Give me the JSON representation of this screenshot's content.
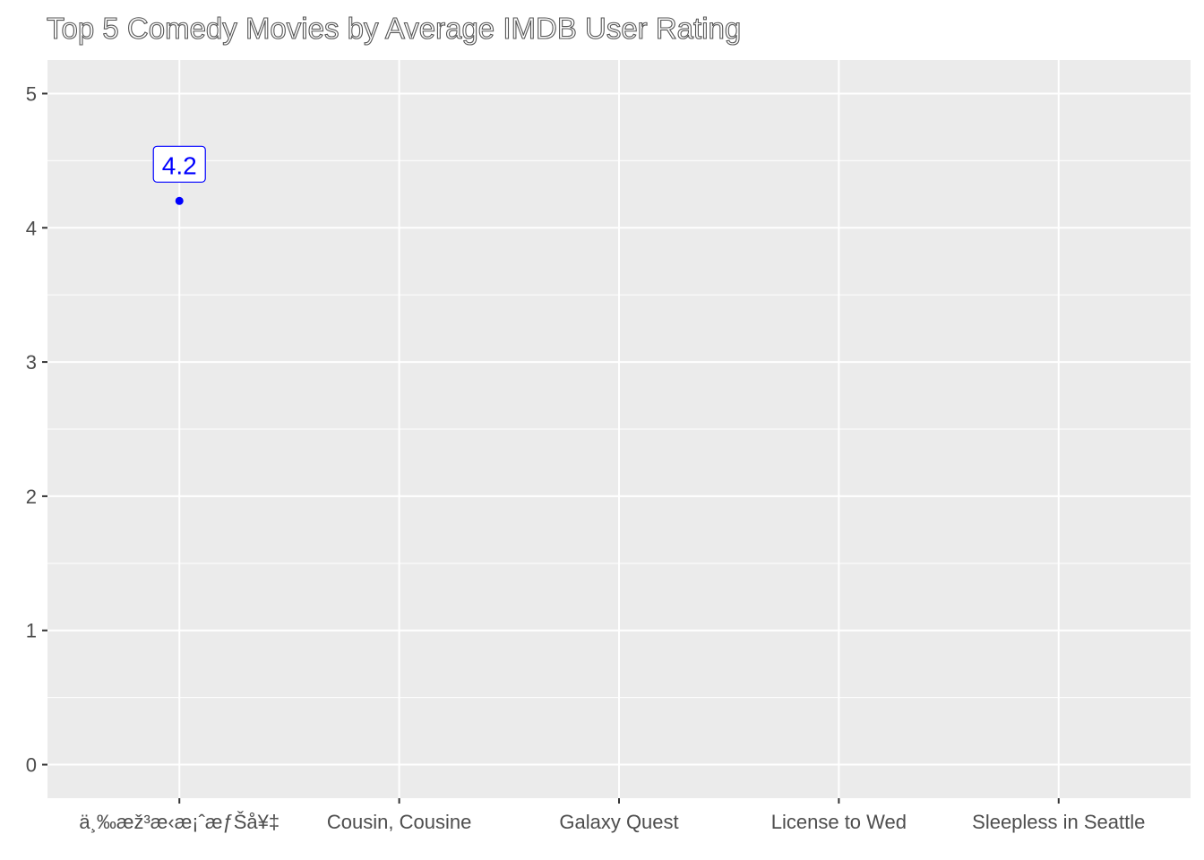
{
  "chart_data": {
    "type": "scatter",
    "title": "Top 5 Comedy Movies by Average IMDB User Rating",
    "xlabel": "",
    "ylabel": "",
    "categories": [
      "ä¸‰æž³æ‹æ¡ˆæƒŠå¥‡",
      "Cousin, Cousine",
      "Galaxy Quest",
      "License to Wed",
      "Sleepless in Seattle"
    ],
    "points": [
      {
        "category": "ä¸‰æž³æ‹æ¡ˆæƒŠå¥‡",
        "value": 4.2,
        "label": "4.2"
      }
    ],
    "ylim": [
      -0.25,
      5.25
    ],
    "yticks": [
      0,
      1,
      2,
      3,
      4,
      5
    ],
    "ytick_labels": [
      "0",
      "1",
      "2",
      "3",
      "4",
      "5"
    ],
    "grid": true,
    "colors": {
      "panel_background": "#ebebeb",
      "grid_major": "#ffffff",
      "point": "#0000ff",
      "label_text": "#0000ff",
      "tick_text": "#4d4d4d",
      "tick_mark": "#333333"
    }
  }
}
